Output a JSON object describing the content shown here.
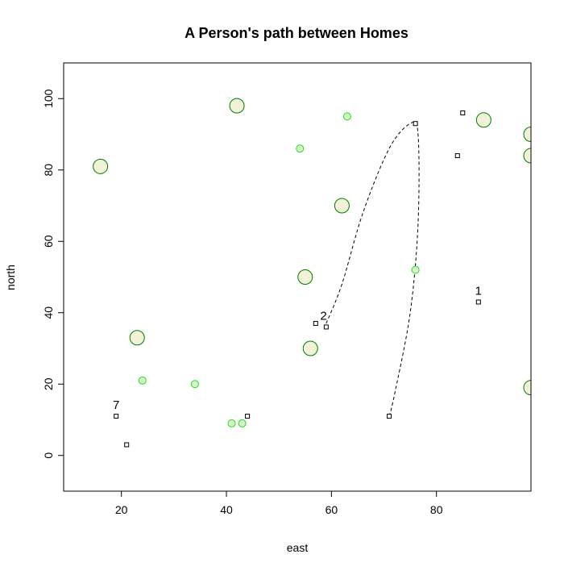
{
  "chart_data": {
    "type": "scatter",
    "title": "A Person's path between Homes",
    "xlabel": "east",
    "ylabel": "north",
    "xlim": [
      9,
      98
    ],
    "ylim": [
      -10,
      110
    ],
    "x_ticks": [
      "20",
      "40",
      "60",
      "80"
    ],
    "x_tick_values": [
      20,
      40,
      60,
      80
    ],
    "y_ticks": [
      "0",
      "20",
      "40",
      "60",
      "80",
      "100"
    ],
    "y_tick_values": [
      0,
      20,
      40,
      60,
      80,
      100
    ],
    "grid": false,
    "colors": {
      "large_circle_fill": "#f2f2d9",
      "large_circle_stroke": "#007a00",
      "small_circle_fill": "#d6f5c8",
      "small_circle_stroke": "#22dd22",
      "square_stroke": "#000000",
      "path_stroke": "#000000"
    },
    "large_circles": [
      {
        "x": 16,
        "y": 81
      },
      {
        "x": 42,
        "y": 98
      },
      {
        "x": 23,
        "y": 33
      },
      {
        "x": 55,
        "y": 50
      },
      {
        "x": 56,
        "y": 30
      },
      {
        "x": 62,
        "y": 70
      },
      {
        "x": 89,
        "y": 94
      },
      {
        "x": 98,
        "y": 90
      },
      {
        "x": 98,
        "y": 84
      },
      {
        "x": 98,
        "y": 19
      }
    ],
    "small_circles": [
      {
        "x": 63,
        "y": 95
      },
      {
        "x": 54,
        "y": 86
      },
      {
        "x": 76,
        "y": 52
      },
      {
        "x": 24,
        "y": 21
      },
      {
        "x": 34,
        "y": 20
      },
      {
        "x": 41,
        "y": 9
      },
      {
        "x": 43,
        "y": 9
      }
    ],
    "squares": [
      {
        "x": 85,
        "y": 96
      },
      {
        "x": 76,
        "y": 93
      },
      {
        "x": 84,
        "y": 84
      },
      {
        "x": 88,
        "y": 43
      },
      {
        "x": 57,
        "y": 37
      },
      {
        "x": 59,
        "y": 36
      },
      {
        "x": 71,
        "y": 11
      },
      {
        "x": 44,
        "y": 11
      },
      {
        "x": 19,
        "y": 11
      },
      {
        "x": 21,
        "y": 3
      }
    ],
    "labels": [
      {
        "text": "1",
        "x": 88,
        "y": 45
      },
      {
        "text": "2",
        "x": 58.5,
        "y": 38
      },
      {
        "text": "7",
        "x": 19,
        "y": 13
      }
    ],
    "path": [
      {
        "x": 59,
        "y": 37
      },
      {
        "x": 62,
        "y": 48
      },
      {
        "x": 66,
        "y": 68
      },
      {
        "x": 71,
        "y": 86
      },
      {
        "x": 75,
        "y": 93
      },
      {
        "x": 76.5,
        "y": 90
      },
      {
        "x": 76.5,
        "y": 65
      },
      {
        "x": 75,
        "y": 40
      },
      {
        "x": 72,
        "y": 17
      },
      {
        "x": 71,
        "y": 11
      }
    ]
  }
}
